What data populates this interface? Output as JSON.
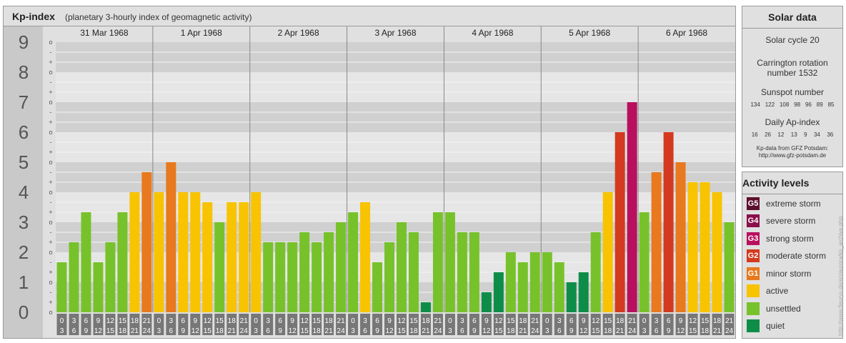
{
  "header": {
    "title": "Kp-index",
    "subtitle": "(planetary 3-hourly index of geomagnetic activity)"
  },
  "solar": {
    "title": "Solar data",
    "cycle": "Solar cycle 20",
    "carrington_line1": "Carrington rotation",
    "carrington_line2": "number 1532",
    "sunspot_label": "Sunspot number",
    "sunspot_values": [
      "134",
      "122",
      "108",
      "98",
      "96",
      "89",
      "85"
    ],
    "ap_label": "Daily Ap-index",
    "ap_values": [
      "16",
      "26",
      "12",
      "13",
      "9",
      "34",
      "36"
    ],
    "source_line1": "Kp-data from GFZ Potsdam:",
    "source_line2": "http://www.gfz-potsdam.de"
  },
  "levels": {
    "title": "Activity levels",
    "items": [
      {
        "code": "G5",
        "label": "extreme storm",
        "color": "#5c0f2c"
      },
      {
        "code": "G4",
        "label": "severe storm",
        "color": "#8a0f4a"
      },
      {
        "code": "G3",
        "label": "strong storm",
        "color": "#b8105f"
      },
      {
        "code": "G2",
        "label": "moderate storm",
        "color": "#d33a1f"
      },
      {
        "code": "G1",
        "label": "minor storm",
        "color": "#e8791e"
      },
      {
        "code": "",
        "label": "active",
        "color": "#f8c300"
      },
      {
        "code": "",
        "label": "unsettled",
        "color": "#77c22a"
      },
      {
        "code": "",
        "label": "quiet",
        "color": "#0e8d48"
      }
    ]
  },
  "watermark": "http://www.fleuryu.de/en/aurora/kp_archive.php",
  "chart_data": {
    "type": "bar",
    "ylim": [
      0,
      9
    ],
    "y_ticks": [
      "0",
      "1",
      "2",
      "3",
      "4",
      "5",
      "6",
      "7",
      "8",
      "9"
    ],
    "minor_ticks": [
      "o",
      "+",
      "-"
    ],
    "days": [
      "31 Mar 1968",
      "1 Apr 1968",
      "2 Apr 1968",
      "3 Apr 1968",
      "4 Apr 1968",
      "5 Apr 1968",
      "6 Apr 1968"
    ],
    "intervals": [
      [
        "0",
        "3"
      ],
      [
        "3",
        "6"
      ],
      [
        "6",
        "9"
      ],
      [
        "9",
        "12"
      ],
      [
        "12",
        "15"
      ],
      [
        "15",
        "18"
      ],
      [
        "18",
        "21"
      ],
      [
        "21",
        "24"
      ]
    ],
    "values": [
      [
        1.667,
        2.333,
        3.333,
        1.667,
        2.333,
        3.333,
        4.0,
        4.667
      ],
      [
        4.0,
        5.0,
        4.0,
        4.0,
        3.667,
        3.0,
        3.667,
        3.667
      ],
      [
        4.0,
        2.333,
        2.333,
        2.333,
        2.667,
        2.333,
        2.667,
        3.0
      ],
      [
        3.333,
        3.667,
        1.667,
        2.333,
        3.0,
        2.667,
        0.333,
        3.333
      ],
      [
        3.333,
        2.667,
        2.667,
        0.667,
        1.333,
        2.0,
        1.667,
        2.0
      ],
      [
        2.0,
        1.667,
        1.0,
        1.333,
        2.667,
        4.0,
        6.0,
        7.0
      ],
      [
        3.333,
        4.667,
        6.0,
        5.0,
        4.333,
        4.333,
        4.0,
        3.0
      ]
    ]
  }
}
